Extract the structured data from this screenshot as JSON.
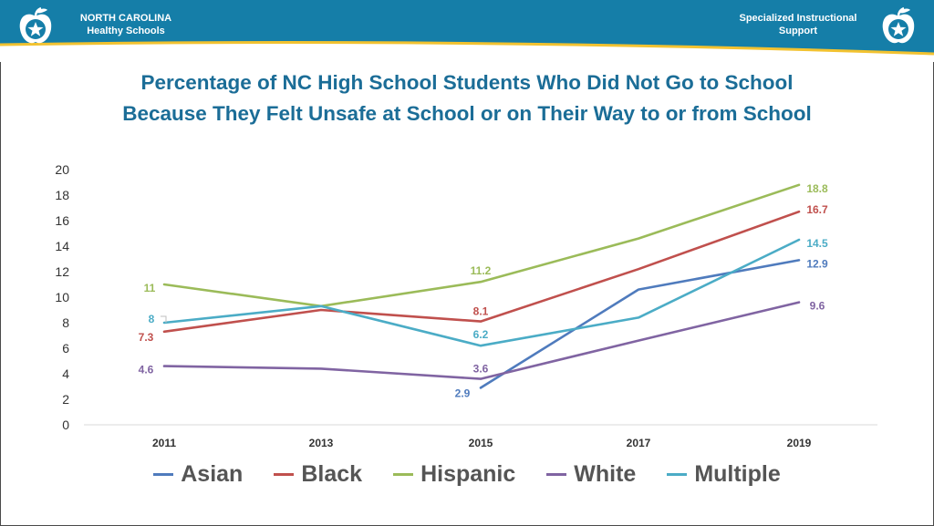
{
  "header": {
    "org_line1": "NORTH CAROLINA",
    "org_line2": "Healthy Schools",
    "dept_line1": "Specialized Instructional",
    "dept_line2": "Support",
    "logo_icon": "apple-star-icon",
    "brand_color": "#157ea8"
  },
  "chart_data": {
    "type": "line",
    "title_line1": "Percentage of NC High School Students Who Did Not Go to School",
    "title_line2": "Because They Felt Unsafe at School or on Their Way to or from School",
    "x": [
      "2011",
      "2013",
      "2015",
      "2017",
      "2019"
    ],
    "ylim": [
      0,
      20
    ],
    "yticks": [
      0,
      2,
      4,
      6,
      8,
      10,
      12,
      14,
      16,
      18,
      20
    ],
    "grid": false,
    "legend_position": "bottom",
    "series": [
      {
        "name": "Asian",
        "color": "#4f7bbd",
        "values": [
          null,
          null,
          2.9,
          10.6,
          12.9
        ],
        "labels": [
          null,
          null,
          "2.9",
          null,
          "12.9"
        ]
      },
      {
        "name": "Black",
        "color": "#c0504d",
        "values": [
          7.3,
          9.0,
          8.1,
          12.2,
          16.7
        ],
        "labels": [
          "7.3",
          null,
          "8.1",
          null,
          "16.7"
        ]
      },
      {
        "name": "Hispanic",
        "color": "#9bbb59",
        "values": [
          11,
          9.3,
          11.2,
          14.6,
          18.8
        ],
        "labels": [
          "11",
          null,
          "11.2",
          null,
          "18.8"
        ]
      },
      {
        "name": "White",
        "color": "#8064a2",
        "values": [
          4.6,
          4.4,
          3.6,
          6.6,
          9.6
        ],
        "labels": [
          "4.6",
          null,
          "3.6",
          null,
          "9.6"
        ]
      },
      {
        "name": "Multiple",
        "color": "#4bacc6",
        "values": [
          8,
          9.3,
          6.2,
          8.4,
          14.5
        ],
        "labels": [
          "8",
          null,
          "6.2",
          null,
          "14.5"
        ]
      }
    ]
  }
}
